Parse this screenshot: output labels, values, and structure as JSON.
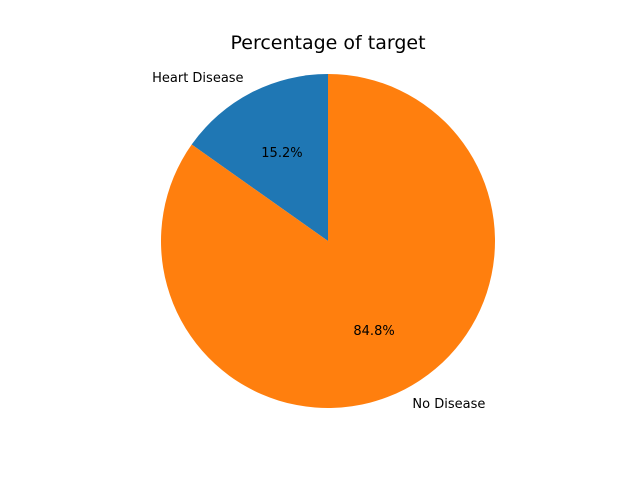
{
  "chart_data": {
    "type": "pie",
    "title": "Percentage of target",
    "categories": [
      "Heart Disease",
      "No Disease"
    ],
    "values": [
      15.2,
      84.8
    ],
    "percent_labels": [
      "15.2%",
      "84.8%"
    ],
    "colors": [
      "#1f77b4",
      "#ff7f0e"
    ],
    "start_angle_deg": 90,
    "direction": "counterclockwise"
  }
}
